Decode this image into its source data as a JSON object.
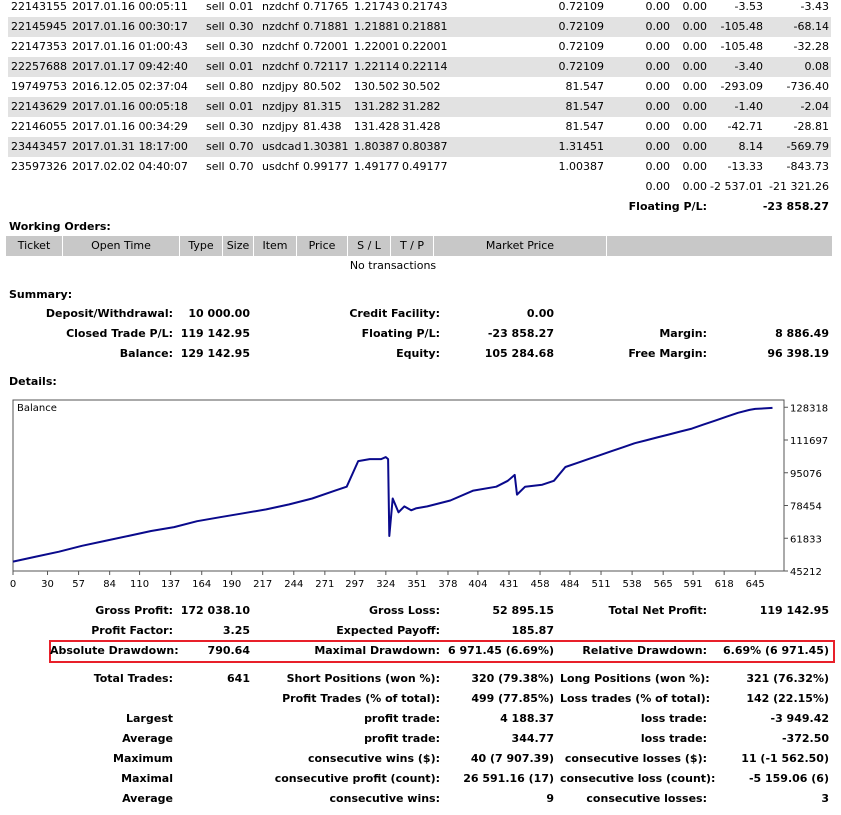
{
  "positions": [
    {
      "ticket": "22143155",
      "time": "2017.01.16 00:05:11",
      "type": "sell",
      "size": "0.01",
      "item": "nzdchf",
      "open": "0.71765",
      "sl": "1.21743",
      "tp": "0.21743",
      "market": "0.72109",
      "commission": "0.00",
      "taxes": "0.00",
      "swap": "-3.53",
      "profit": "-3.43",
      "shade": false
    },
    {
      "ticket": "22145945",
      "time": "2017.01.16 00:30:17",
      "type": "sell",
      "size": "0.30",
      "item": "nzdchf",
      "open": "0.71881",
      "sl": "1.21881",
      "tp": "0.21881",
      "market": "0.72109",
      "commission": "0.00",
      "taxes": "0.00",
      "swap": "-105.48",
      "profit": "-68.14",
      "shade": true
    },
    {
      "ticket": "22147353",
      "time": "2017.01.16 01:00:43",
      "type": "sell",
      "size": "0.30",
      "item": "nzdchf",
      "open": "0.72001",
      "sl": "1.22001",
      "tp": "0.22001",
      "market": "0.72109",
      "commission": "0.00",
      "taxes": "0.00",
      "swap": "-105.48",
      "profit": "-32.28",
      "shade": false
    },
    {
      "ticket": "22257688",
      "time": "2017.01.17 09:42:40",
      "type": "sell",
      "size": "0.01",
      "item": "nzdchf",
      "open": "0.72117",
      "sl": "1.22114",
      "tp": "0.22114",
      "market": "0.72109",
      "commission": "0.00",
      "taxes": "0.00",
      "swap": "-3.40",
      "profit": "0.08",
      "shade": true
    },
    {
      "ticket": "19749753",
      "time": "2016.12.05 02:37:04",
      "type": "sell",
      "size": "0.80",
      "item": "nzdjpy",
      "open": "80.502",
      "sl": "130.502",
      "tp": "30.502",
      "market": "81.547",
      "commission": "0.00",
      "taxes": "0.00",
      "swap": "-293.09",
      "profit": "-736.40",
      "shade": false
    },
    {
      "ticket": "22143629",
      "time": "2017.01.16 00:05:18",
      "type": "sell",
      "size": "0.01",
      "item": "nzdjpy",
      "open": "81.315",
      "sl": "131.282",
      "tp": "31.282",
      "market": "81.547",
      "commission": "0.00",
      "taxes": "0.00",
      "swap": "-1.40",
      "profit": "-2.04",
      "shade": true
    },
    {
      "ticket": "22146055",
      "time": "2017.01.16 00:34:29",
      "type": "sell",
      "size": "0.30",
      "item": "nzdjpy",
      "open": "81.438",
      "sl": "131.428",
      "tp": "31.428",
      "market": "81.547",
      "commission": "0.00",
      "taxes": "0.00",
      "swap": "-42.71",
      "profit": "-28.81",
      "shade": false
    },
    {
      "ticket": "23443457",
      "time": "2017.01.31 18:17:00",
      "type": "sell",
      "size": "0.70",
      "item": "usdcad",
      "open": "1.30381",
      "sl": "1.80387",
      "tp": "0.80387",
      "market": "1.31451",
      "commission": "0.00",
      "taxes": "0.00",
      "swap": "8.14",
      "profit": "-569.79",
      "shade": true
    },
    {
      "ticket": "23597326",
      "time": "2017.02.02 04:40:07",
      "type": "sell",
      "size": "0.70",
      "item": "usdchf",
      "open": "0.99177",
      "sl": "1.49177",
      "tp": "0.49177",
      "market": "1.00387",
      "commission": "0.00",
      "taxes": "0.00",
      "swap": "-13.33",
      "profit": "-843.73",
      "shade": false
    }
  ],
  "totals": {
    "commission": "0.00",
    "taxes": "0.00",
    "swap": "-2 537.01",
    "profit": "-21 321.26"
  },
  "floating_pl": {
    "label": "Floating P/L:",
    "value": "-23 858.27"
  },
  "working_orders": {
    "title": "Working Orders:",
    "columns": [
      "Ticket",
      "Open Time",
      "Type",
      "Size",
      "Item",
      "Price",
      "S / L",
      "T / P",
      "Market Price"
    ],
    "empty": "No transactions"
  },
  "summary": {
    "title": "Summary:",
    "deposit_label": "Deposit/Withdrawal:",
    "deposit": "10 000.00",
    "credit_label": "Credit Facility:",
    "credit": "0.00",
    "closed_label": "Closed Trade P/L:",
    "closed": "119 142.95",
    "floating_label": "Floating P/L:",
    "floating": "-23 858.27",
    "margin_label": "Margin:",
    "margin": "8 886.49",
    "balance_label": "Balance:",
    "balance": "129 142.95",
    "equity_label": "Equity:",
    "equity": "105 284.68",
    "free_margin_label": "Free Margin:",
    "free_margin": "96 398.19"
  },
  "details_title": "Details:",
  "chart_data": {
    "type": "line",
    "series": [
      {
        "name": "Balance",
        "color": "#0a0a8c"
      }
    ],
    "y_ticks": [
      128318,
      111697,
      95076,
      78454,
      61833,
      45212
    ],
    "x_ticks": [
      0,
      30,
      57,
      84,
      110,
      137,
      164,
      190,
      217,
      244,
      271,
      297,
      324,
      351,
      378,
      404,
      431,
      458,
      484,
      511,
      538,
      565,
      591,
      618,
      645
    ],
    "x": [
      0,
      20,
      40,
      60,
      80,
      100,
      120,
      140,
      160,
      180,
      200,
      220,
      240,
      260,
      280,
      290,
      300,
      310,
      320,
      324,
      326,
      327,
      330,
      335,
      340,
      346,
      350,
      360,
      380,
      400,
      420,
      430,
      436,
      438,
      445,
      460,
      470,
      480,
      490,
      500,
      510,
      520,
      530,
      540,
      550,
      560,
      570,
      580,
      590,
      600,
      610,
      620,
      630,
      640,
      645,
      660
    ],
    "y": [
      50000,
      52500,
      55000,
      58000,
      60500,
      63000,
      65500,
      67500,
      70500,
      72500,
      74500,
      76500,
      79000,
      82000,
      86000,
      88000,
      101000,
      102000,
      102000,
      103000,
      102000,
      63000,
      82000,
      75000,
      78000,
      76000,
      77000,
      78000,
      81000,
      86000,
      88000,
      91000,
      94000,
      84000,
      88000,
      89000,
      91000,
      98000,
      100000,
      102000,
      104000,
      106000,
      108000,
      110000,
      111500,
      113000,
      114500,
      116000,
      117500,
      119500,
      121500,
      123500,
      125500,
      127000,
      127500,
      128000
    ],
    "xlim": [
      0,
      670
    ],
    "ylim": [
      45212,
      132000
    ],
    "grid": false
  },
  "stats": {
    "gross_profit_label": "Gross Profit:",
    "gross_profit": "172 038.10",
    "gross_loss_label": "Gross Loss:",
    "gross_loss": "52 895.15",
    "total_net_label": "Total Net Profit:",
    "total_net": "119 142.95",
    "profit_factor_label": "Profit Factor:",
    "profit_factor": "3.25",
    "expected_payoff_label": "Expected Payoff:",
    "expected_payoff": "185.87",
    "abs_dd_label": "Absolute Drawdown:",
    "abs_dd": "790.64",
    "max_dd_label": "Maximal Drawdown:",
    "max_dd": "6 971.45 (6.69%)",
    "rel_dd_label": "Relative Drawdown:",
    "rel_dd": "6.69% (6 971.45)",
    "total_trades_label": "Total Trades:",
    "total_trades": "641",
    "short_label": "Short Positions (won %):",
    "short": "320 (79.38%)",
    "long_label": "Long Positions (won %):",
    "long": "321 (76.32%)",
    "profit_trades_label": "Profit Trades (% of total):",
    "profit_trades": "499 (77.85%)",
    "loss_trades_label": "Loss trades (% of total):",
    "loss_trades": "142 (22.15%)",
    "largest_label": "Largest",
    "largest_profit_label": "profit trade:",
    "largest_profit": "4 188.37",
    "largest_loss_label": "loss trade:",
    "largest_loss": "-3 949.42",
    "average_label": "Average",
    "avg_profit_label": "profit trade:",
    "avg_profit": "344.77",
    "avg_loss_label": "loss trade:",
    "avg_loss": "-372.50",
    "maximum_label": "Maximum",
    "max_cons_wins_label": "consecutive wins ($):",
    "max_cons_wins": "40 (7 907.39)",
    "max_cons_losses_label": "consecutive losses ($):",
    "max_cons_losses": "11 (-1 562.50)",
    "maximal_label": "Maximal",
    "maximal_profit_label": "consecutive profit (count):",
    "maximal_profit": "26 591.16 (17)",
    "maximal_loss_label": "consecutive loss (count):",
    "maximal_loss": "-5 159.06 (6)",
    "average2_label": "Average",
    "avg_cons_wins_label": "consecutive wins:",
    "avg_cons_wins": "9",
    "avg_cons_losses_label": "consecutive losses:",
    "avg_cons_losses": "3"
  }
}
